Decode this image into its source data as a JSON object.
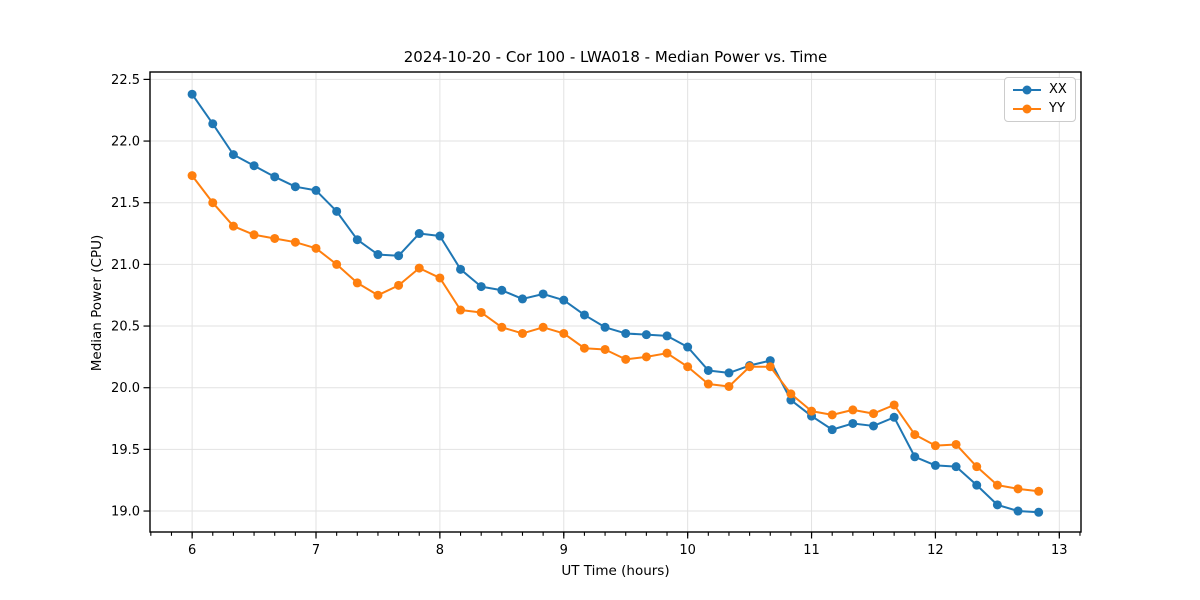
{
  "figure": {
    "background": "#ffffff"
  },
  "chart_data": {
    "type": "line",
    "title": "2024-10-20 - Cor 100 - LWA018 - Median Power vs. Time",
    "xlabel": "UT Time (hours)",
    "ylabel": "Median Power (CPU)",
    "xlim": [
      5.66,
      13.175
    ],
    "ylim": [
      18.83,
      22.56
    ],
    "grid": true,
    "legend_position": "upper right",
    "x_major_ticks": [
      6,
      7,
      8,
      9,
      10,
      11,
      12,
      13
    ],
    "x_major_tick_labels": [
      "6",
      "7",
      "8",
      "9",
      "10",
      "11",
      "12",
      "13"
    ],
    "x_minor_tick_step": 0.166667,
    "y_major_ticks": [
      19.0,
      19.5,
      20.0,
      20.5,
      21.0,
      21.5,
      22.0,
      22.5
    ],
    "y_major_tick_labels": [
      "19.0",
      "19.5",
      "20.0",
      "20.5",
      "21.0",
      "21.5",
      "22.0",
      "22.5"
    ],
    "x": [
      6.0,
      6.1667,
      6.3333,
      6.5,
      6.6667,
      6.8333,
      7.0,
      7.1667,
      7.3333,
      7.5,
      7.6667,
      7.8333,
      8.0,
      8.1667,
      8.3333,
      8.5,
      8.6667,
      8.8333,
      9.0,
      9.1667,
      9.3333,
      9.5,
      9.6667,
      9.8333,
      10.0,
      10.1667,
      10.3333,
      10.5,
      10.6667,
      10.8333,
      11.0,
      11.1667,
      11.3333,
      11.5,
      11.6667,
      11.8333,
      12.0,
      12.1667,
      12.3333,
      12.5,
      12.6667,
      12.8333
    ],
    "series": [
      {
        "name": "XX",
        "color": "#1f77b4",
        "values": [
          22.38,
          22.14,
          21.89,
          21.8,
          21.71,
          21.63,
          21.6,
          21.43,
          21.2,
          21.08,
          21.07,
          21.25,
          21.23,
          20.96,
          20.82,
          20.79,
          20.72,
          20.76,
          20.71,
          20.59,
          20.49,
          20.44,
          20.43,
          20.42,
          20.33,
          20.14,
          20.12,
          20.18,
          20.22,
          19.9,
          19.77,
          19.66,
          19.71,
          19.69,
          19.76,
          19.44,
          19.37,
          19.36,
          19.21,
          19.05,
          19.0,
          18.99
        ]
      },
      {
        "name": "YY",
        "color": "#ff7f0e",
        "values": [
          21.72,
          21.5,
          21.31,
          21.24,
          21.21,
          21.18,
          21.13,
          21.0,
          20.85,
          20.75,
          20.83,
          20.97,
          20.89,
          20.63,
          20.61,
          20.49,
          20.44,
          20.49,
          20.44,
          20.32,
          20.31,
          20.23,
          20.25,
          20.28,
          20.17,
          20.03,
          20.01,
          20.17,
          20.17,
          19.95,
          19.81,
          19.78,
          19.82,
          19.79,
          19.86,
          19.62,
          19.53,
          19.54,
          19.36,
          19.21,
          19.18,
          19.16
        ]
      }
    ],
    "style": {
      "grid_color": "#e2e2e2",
      "spine_color": "#000000",
      "tick_color": "#000000",
      "marker": "circle"
    }
  }
}
